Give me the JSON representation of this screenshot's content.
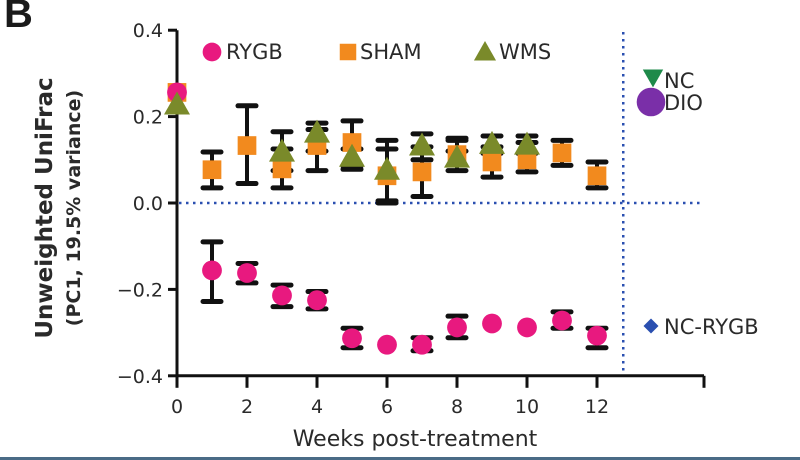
{
  "panel_label": "B",
  "chart_data": {
    "type": "scatter",
    "title": "",
    "xlabel": "Weeks post-treatment",
    "ylabel": "Unweighted UniFrac",
    "ylabel_sub": "(PC1, 19.5% variance)",
    "xlim": [
      0,
      15
    ],
    "ylim": [
      -0.4,
      0.4
    ],
    "xticks": [
      0,
      2,
      4,
      6,
      8,
      10,
      12
    ],
    "yticks": [
      {
        "value": 0.4,
        "label": "0.4"
      },
      {
        "value": 0.2,
        "label": "0.2"
      },
      {
        "value": 0.0,
        "label": "0.0"
      },
      {
        "value": -0.2,
        "label": "−0.2"
      },
      {
        "value": -0.4,
        "label": "−0.4"
      }
    ],
    "grid": false,
    "reference_lines": [
      {
        "orientation": "horizontal",
        "value": 0.0,
        "style": "dotted",
        "color": "#2a4fb0"
      },
      {
        "orientation": "vertical",
        "value": 12.75,
        "style": "dotted",
        "color": "#2a4fb0"
      }
    ],
    "series": [
      {
        "name": "RYGB",
        "marker": "circle",
        "color": "#e8197f",
        "points": [
          {
            "x": 0,
            "y": 0.256
          },
          {
            "x": 1,
            "y": -0.156,
            "lo": -0.228,
            "hi": -0.09
          },
          {
            "x": 2,
            "y": -0.162,
            "lo": -0.185,
            "hi": -0.14
          },
          {
            "x": 3,
            "y": -0.214,
            "lo": -0.24,
            "hi": -0.19
          },
          {
            "x": 4,
            "y": -0.225,
            "lo": -0.245,
            "hi": -0.205
          },
          {
            "x": 5,
            "y": -0.313,
            "lo": -0.335,
            "hi": -0.29
          },
          {
            "x": 6,
            "y": -0.328
          },
          {
            "x": 7,
            "y": -0.328,
            "lo": -0.342,
            "hi": -0.312
          },
          {
            "x": 8,
            "y": -0.288,
            "lo": -0.312,
            "hi": -0.262
          },
          {
            "x": 9,
            "y": -0.279
          },
          {
            "x": 10,
            "y": -0.288
          },
          {
            "x": 11,
            "y": -0.272,
            "lo": -0.29,
            "hi": -0.252
          },
          {
            "x": 12,
            "y": -0.307,
            "lo": -0.335,
            "hi": -0.29
          }
        ]
      },
      {
        "name": "SHAM",
        "marker": "square",
        "color": "#f28a1e",
        "points": [
          {
            "x": 0,
            "y": 0.256
          },
          {
            "x": 1,
            "y": 0.077,
            "lo": 0.035,
            "hi": 0.118
          },
          {
            "x": 2,
            "y": 0.133,
            "lo": 0.045,
            "hi": 0.225
          },
          {
            "x": 3,
            "y": 0.079,
            "lo": 0.035,
            "hi": 0.125
          },
          {
            "x": 4,
            "y": 0.133,
            "lo": 0.075,
            "hi": 0.17
          },
          {
            "x": 5,
            "y": 0.14,
            "lo": 0.078,
            "hi": 0.19
          },
          {
            "x": 6,
            "y": 0.063,
            "lo": 0.0,
            "hi": 0.125
          },
          {
            "x": 7,
            "y": 0.072,
            "lo": 0.015,
            "hi": 0.13
          },
          {
            "x": 8,
            "y": 0.112,
            "lo": 0.075,
            "hi": 0.145
          },
          {
            "x": 9,
            "y": 0.095,
            "lo": 0.06,
            "hi": 0.13
          },
          {
            "x": 10,
            "y": 0.1,
            "lo": 0.072,
            "hi": 0.14
          },
          {
            "x": 11,
            "y": 0.116,
            "lo": 0.087,
            "hi": 0.145
          },
          {
            "x": 12,
            "y": 0.063,
            "lo": 0.035,
            "hi": 0.095
          }
        ]
      },
      {
        "name": "WMS",
        "marker": "triangle-up",
        "color": "#7a8a2a",
        "points": [
          {
            "x": 0,
            "y": 0.228
          },
          {
            "x": 3,
            "y": 0.119,
            "lo": 0.075,
            "hi": 0.165
          },
          {
            "x": 4,
            "y": 0.163,
            "lo": 0.12,
            "hi": 0.185
          },
          {
            "x": 5,
            "y": 0.107,
            "lo": 0.085,
            "hi": 0.125
          },
          {
            "x": 6,
            "y": 0.077,
            "lo": 0.005,
            "hi": 0.145
          },
          {
            "x": 7,
            "y": 0.133,
            "lo": 0.1,
            "hi": 0.16
          },
          {
            "x": 8,
            "y": 0.105,
            "lo": 0.12,
            "hi": 0.15
          },
          {
            "x": 9,
            "y": 0.137,
            "lo": 0.115,
            "hi": 0.155
          },
          {
            "x": 10,
            "y": 0.135,
            "lo": 0.115,
            "hi": 0.155
          }
        ]
      },
      {
        "name": "NC",
        "marker": "triangle-down",
        "color": "#1e8a4a",
        "points": []
      },
      {
        "name": "DIO",
        "marker": "circle",
        "color": "#7a2fa8",
        "points": []
      },
      {
        "name": "NC-RYGB",
        "marker": "diamond",
        "color": "#2a4fb0",
        "points": []
      }
    ],
    "legend": [
      {
        "label": "RYGB",
        "marker": "circle",
        "color": "#e8197f",
        "placement": "top-left"
      },
      {
        "label": "SHAM",
        "marker": "square",
        "color": "#f28a1e",
        "placement": "top-center"
      },
      {
        "label": "WMS",
        "marker": "triangle-up",
        "color": "#7a8a2a",
        "placement": "top-center"
      },
      {
        "label": "NC",
        "marker": "triangle-down",
        "color": "#1e8a4a",
        "placement": "top-right"
      },
      {
        "label": "DIO",
        "marker": "circle",
        "color": "#7a2fa8",
        "placement": "top-right"
      },
      {
        "label": "NC-RYGB",
        "marker": "diamond",
        "color": "#2a4fb0",
        "placement": "bottom-right"
      }
    ]
  }
}
